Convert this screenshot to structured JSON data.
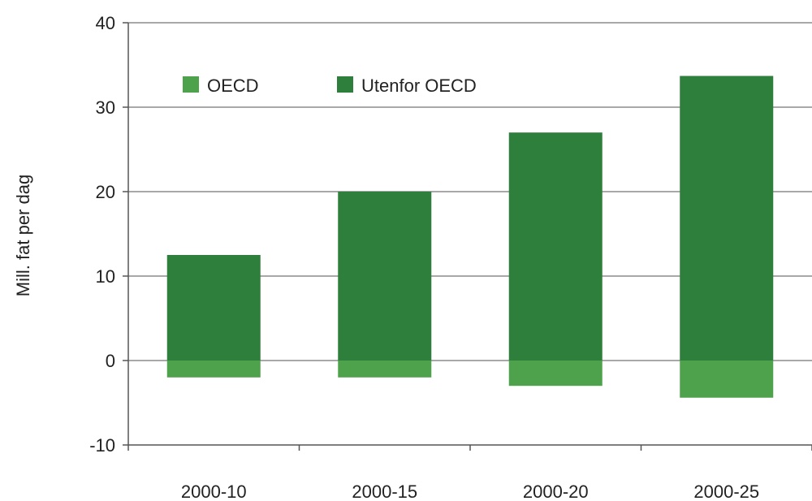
{
  "chart_data": {
    "type": "bar",
    "stacked": true,
    "title": "",
    "xlabel": "",
    "ylabel": "Mill. fat per dag",
    "ylim": [
      -10,
      40
    ],
    "yticks": [
      40,
      30,
      20,
      10,
      0,
      -10
    ],
    "ytick_labels": [
      "40",
      "30",
      "20",
      "10",
      "0",
      "-10"
    ],
    "categories": [
      "2000-10",
      "2000-15",
      "2000-20",
      "2000-25"
    ],
    "grid": "horizontal",
    "legend": "top-left",
    "series": [
      {
        "name": "OECD",
        "color": "#4ea24b",
        "values": [
          -2.0,
          -2.0,
          -3.0,
          -4.4
        ]
      },
      {
        "name": "Utenfor OECD",
        "color": "#2e7f3c",
        "values": [
          12.5,
          20.0,
          27.0,
          33.7
        ]
      }
    ]
  }
}
